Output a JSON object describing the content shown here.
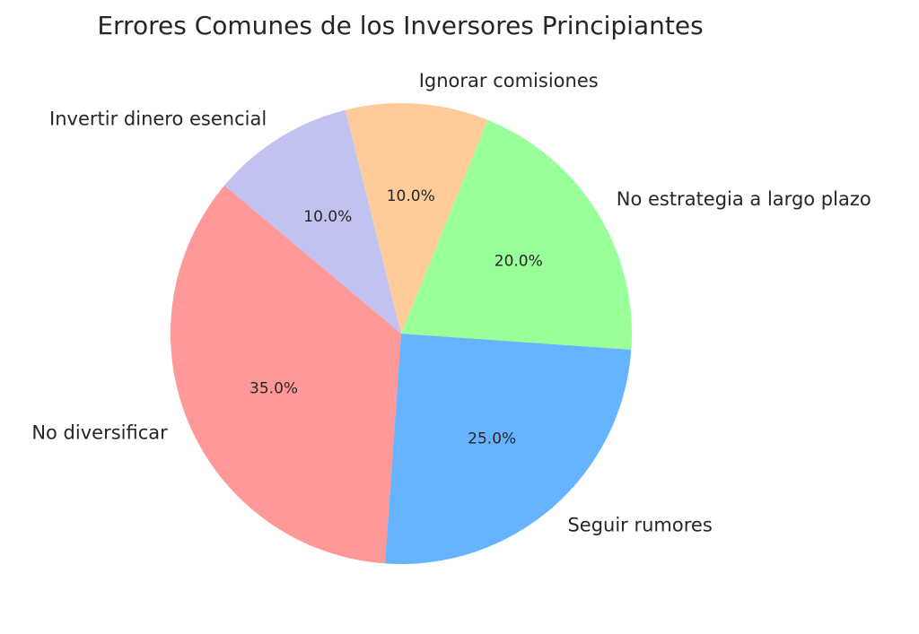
{
  "chart_data": {
    "type": "pie",
    "title": "Errores Comunes de los Inversores Principiantes",
    "categories": [
      "No diversificar",
      "Seguir rumores",
      "No estrategia a largo plazo",
      "Ignorar comisiones",
      "Invertir dinero esencial"
    ],
    "values": [
      35,
      25,
      20,
      10,
      10
    ],
    "percent_labels": [
      "35.0%",
      "25.0%",
      "20.0%",
      "10.0%",
      "10.0%"
    ],
    "colors": [
      "#ff9999",
      "#66b3ff",
      "#99ff99",
      "#ffcc99",
      "#c2c2f0"
    ],
    "start_angle": 140,
    "legend": "none"
  }
}
